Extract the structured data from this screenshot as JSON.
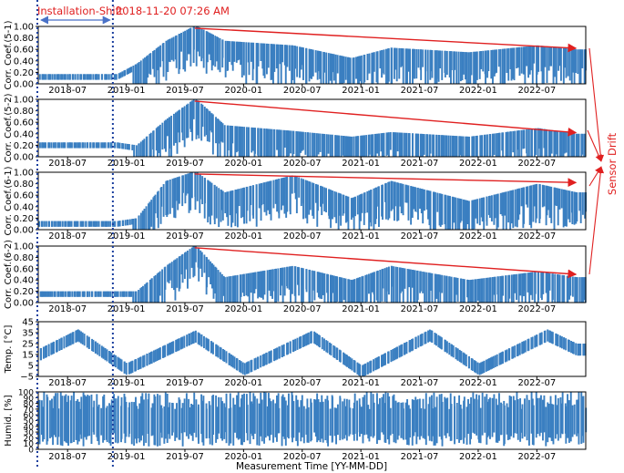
{
  "figure": {
    "xlabel": "Measurement Time [YY-MM-DD]",
    "colors": {
      "data": "#3a7fc1",
      "annotation": "#e02020",
      "shift_arrow": "#4a72c8",
      "vline": "#1a3f9e",
      "frame": "#000000"
    },
    "annotations": {
      "installation_shift_label": "Installation-Shift",
      "event_label": "2018-11-20 07:26 AM",
      "sensor_drift_label": "Sensor Drift"
    }
  },
  "chart_data": [
    {
      "type": "scatter",
      "ylabel": "Corr. Coef.(5-1)",
      "ylim": [
        0,
        1.0
      ],
      "yticks": [
        "0.00",
        "0.20",
        "0.40",
        "0.60",
        "0.80",
        "1.00"
      ],
      "xticks": [
        "2018-07",
        "2019-01",
        "2019-07",
        "2020-01",
        "2020-07",
        "2021-01",
        "2021-07",
        "2022-01",
        "2022-07"
      ],
      "trend": {
        "from": [
          "2019-08",
          0.97
        ],
        "to": [
          "2022-11",
          0.62
        ]
      },
      "profile": [
        [
          "2018-04",
          0.12
        ],
        [
          "2018-12",
          0.12
        ],
        [
          "2019-02",
          0.3
        ],
        [
          "2019-05",
          0.7
        ],
        [
          "2019-08",
          0.97
        ],
        [
          "2019-11",
          0.7
        ],
        [
          "2020-06",
          0.62
        ],
        [
          "2020-12",
          0.4
        ],
        [
          "2021-04",
          0.58
        ],
        [
          "2021-12",
          0.5
        ],
        [
          "2022-07",
          0.62
        ],
        [
          "2022-11",
          0.55
        ]
      ]
    },
    {
      "type": "scatter",
      "ylabel": "Corr. Coef.(5-2)",
      "ylim": [
        0,
        1.0
      ],
      "yticks": [
        "0.00",
        "0.20",
        "0.40",
        "0.60",
        "0.80",
        "1.00"
      ],
      "xticks": [
        "2018-07",
        "2019-01",
        "2019-07",
        "2020-01",
        "2020-07",
        "2021-01",
        "2021-07",
        "2022-01",
        "2022-07"
      ],
      "trend": {
        "from": [
          "2019-08",
          0.97
        ],
        "to": [
          "2022-11",
          0.42
        ]
      },
      "profile": [
        [
          "2018-04",
          0.2
        ],
        [
          "2018-12",
          0.2
        ],
        [
          "2019-02",
          0.15
        ],
        [
          "2019-05",
          0.6
        ],
        [
          "2019-08",
          0.97
        ],
        [
          "2019-11",
          0.5
        ],
        [
          "2020-06",
          0.4
        ],
        [
          "2020-12",
          0.3
        ],
        [
          "2021-04",
          0.38
        ],
        [
          "2021-12",
          0.3
        ],
        [
          "2022-07",
          0.45
        ],
        [
          "2022-11",
          0.35
        ]
      ]
    },
    {
      "type": "scatter",
      "ylabel": "Corr. Coef.(6-1)",
      "ylim": [
        0,
        1.0
      ],
      "yticks": [
        "0.00",
        "0.20",
        "0.40",
        "0.60",
        "0.80",
        "1.00"
      ],
      "xticks": [
        "2018-07",
        "2019-01",
        "2019-07",
        "2020-01",
        "2020-07",
        "2021-01",
        "2021-07",
        "2022-01",
        "2022-07"
      ],
      "trend": {
        "from": [
          "2019-08",
          0.97
        ],
        "to": [
          "2022-11",
          0.82
        ]
      },
      "profile": [
        [
          "2018-04",
          0.1
        ],
        [
          "2018-12",
          0.1
        ],
        [
          "2019-02",
          0.15
        ],
        [
          "2019-05",
          0.8
        ],
        [
          "2019-08",
          0.97
        ],
        [
          "2019-11",
          0.6
        ],
        [
          "2020-06",
          0.9
        ],
        [
          "2020-12",
          0.5
        ],
        [
          "2021-04",
          0.8
        ],
        [
          "2021-12",
          0.45
        ],
        [
          "2022-07",
          0.75
        ],
        [
          "2022-11",
          0.6
        ]
      ]
    },
    {
      "type": "scatter",
      "ylabel": "Corr. Coef.(6-2)",
      "ylim": [
        0,
        1.0
      ],
      "yticks": [
        "0.00",
        "0.20",
        "0.40",
        "0.60",
        "0.80",
        "1.00"
      ],
      "xticks": [
        "2018-07",
        "2019-01",
        "2019-07",
        "2020-01",
        "2020-07",
        "2021-01",
        "2021-07",
        "2022-01",
        "2022-07"
      ],
      "trend": {
        "from": [
          "2019-08",
          0.97
        ],
        "to": [
          "2022-11",
          0.5
        ]
      },
      "profile": [
        [
          "2018-04",
          0.15
        ],
        [
          "2018-12",
          0.15
        ],
        [
          "2019-02",
          0.15
        ],
        [
          "2019-05",
          0.6
        ],
        [
          "2019-08",
          0.97
        ],
        [
          "2019-11",
          0.4
        ],
        [
          "2020-06",
          0.6
        ],
        [
          "2020-12",
          0.35
        ],
        [
          "2021-04",
          0.6
        ],
        [
          "2021-12",
          0.35
        ],
        [
          "2022-07",
          0.5
        ],
        [
          "2022-11",
          0.4
        ]
      ]
    },
    {
      "type": "scatter",
      "ylabel": "Temp. [°C]",
      "ylim": [
        -5,
        45
      ],
      "yticks": [
        "−5",
        "5",
        "15",
        "25",
        "35",
        "45"
      ],
      "xticks": [
        "2018-07",
        "2019-01",
        "2019-07",
        "2020-01",
        "2020-07",
        "2021-01",
        "2021-07",
        "2022-01",
        "2022-07"
      ],
      "profile": [
        [
          "2018-04",
          15
        ],
        [
          "2018-08",
          33
        ],
        [
          "2019-01",
          2
        ],
        [
          "2019-08",
          32
        ],
        [
          "2020-01",
          2
        ],
        [
          "2020-08",
          32
        ],
        [
          "2021-01",
          0
        ],
        [
          "2021-08",
          33
        ],
        [
          "2022-01",
          2
        ],
        [
          "2022-08",
          33
        ],
        [
          "2022-11",
          20
        ]
      ]
    },
    {
      "type": "scatter",
      "ylabel": "Humid. [%]",
      "ylim": [
        0,
        100
      ],
      "yticks": [
        "0",
        "10",
        "20",
        "30",
        "40",
        "50",
        "60",
        "70",
        "80",
        "90",
        "100"
      ],
      "xticks": [
        "2018-07",
        "2019-01",
        "2019-07",
        "2020-01",
        "2020-07",
        "2021-01",
        "2021-07",
        "2022-01",
        "2022-07"
      ],
      "profile": [
        [
          "2018-04",
          50
        ],
        [
          "2022-11",
          55
        ]
      ]
    }
  ]
}
